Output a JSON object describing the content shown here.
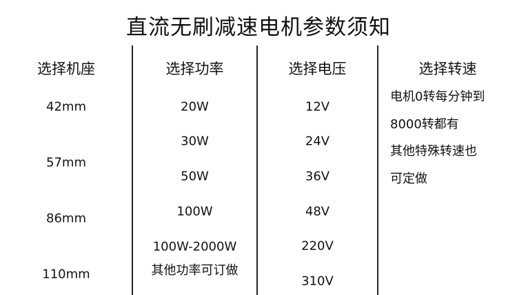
{
  "title": "直流无刷减速电机参数须知",
  "columns": {
    "base": {
      "header": "选择机座",
      "values": [
        "42mm",
        "57mm",
        "86mm",
        "110mm"
      ]
    },
    "power": {
      "header": "选择功率",
      "values": [
        "20W",
        "30W",
        "50W",
        "100W",
        "100W-2000W",
        "其他功率可订做"
      ]
    },
    "voltage": {
      "header": "选择电压",
      "values": [
        "12V",
        "24V",
        "36V",
        "48V",
        "220V",
        "310V"
      ]
    },
    "speed": {
      "header": "选择转速",
      "lines": [
        "电机0转每分钟到",
        "8000转都有",
        "其他特殊转速也",
        "可定做"
      ]
    }
  }
}
